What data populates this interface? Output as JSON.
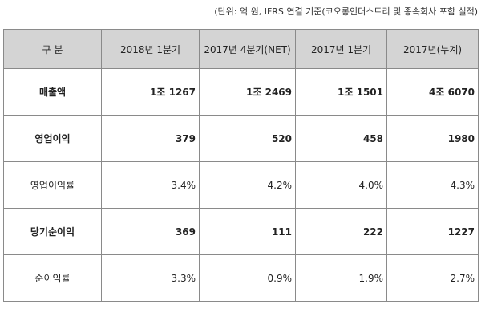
{
  "unit_note": "(단위: 억 원, IFRS 연결 기준(코오롱인더스트리 및 종속회사 포함 실적)",
  "table": {
    "headers": [
      "구 분",
      "2018년 1분기",
      "2017년 4분기(NET)",
      "2017년 1분기",
      "2017년(누계)"
    ],
    "rows": [
      {
        "label": "매출액",
        "values": [
          "1조 1267",
          "1조 2469",
          "1조 1501",
          "4조 6070"
        ],
        "bold": true
      },
      {
        "label": "영업이익",
        "values": [
          "379",
          "520",
          "458",
          "1980"
        ],
        "bold": true
      },
      {
        "label": "영업이익률",
        "values": [
          "3.4%",
          "4.2%",
          "4.0%",
          "4.3%"
        ],
        "bold": false
      },
      {
        "label": "당기순이익",
        "values": [
          "369",
          "111",
          "222",
          "1227"
        ],
        "bold": true
      },
      {
        "label": "순이익률",
        "values": [
          "3.3%",
          "0.9%",
          "1.9%",
          "2.7%"
        ],
        "bold": false
      }
    ]
  }
}
